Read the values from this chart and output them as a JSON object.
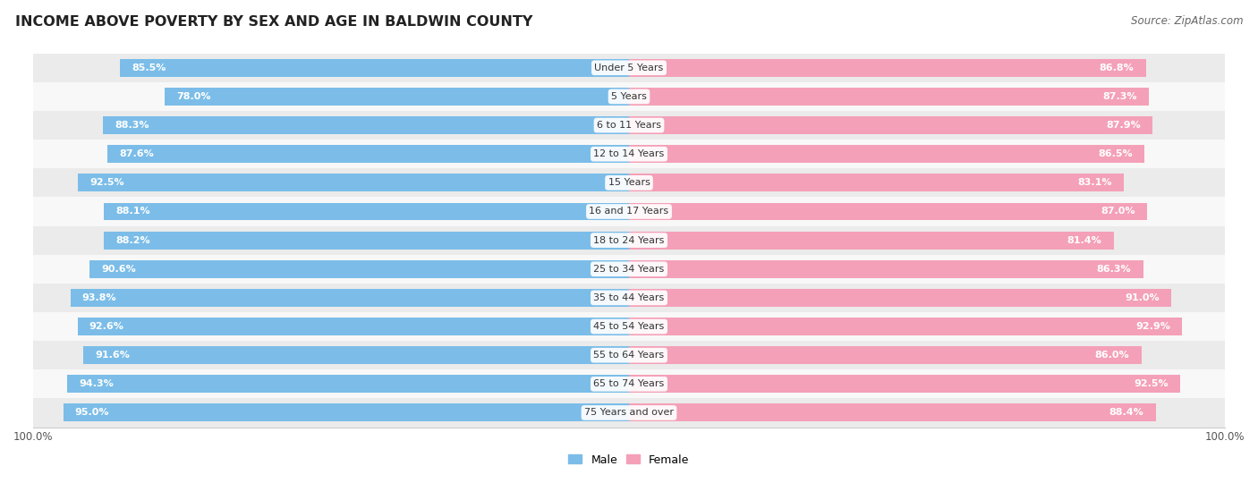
{
  "title": "INCOME ABOVE POVERTY BY SEX AND AGE IN BALDWIN COUNTY",
  "source": "Source: ZipAtlas.com",
  "categories": [
    "Under 5 Years",
    "5 Years",
    "6 to 11 Years",
    "12 to 14 Years",
    "15 Years",
    "16 and 17 Years",
    "18 to 24 Years",
    "25 to 34 Years",
    "35 to 44 Years",
    "45 to 54 Years",
    "55 to 64 Years",
    "65 to 74 Years",
    "75 Years and over"
  ],
  "male_values": [
    85.5,
    78.0,
    88.3,
    87.6,
    92.5,
    88.1,
    88.2,
    90.6,
    93.8,
    92.6,
    91.6,
    94.3,
    95.0
  ],
  "female_values": [
    86.8,
    87.3,
    87.9,
    86.5,
    83.1,
    87.0,
    81.4,
    86.3,
    91.0,
    92.9,
    86.0,
    92.5,
    88.4
  ],
  "male_color": "#7bbde8",
  "female_color": "#f4a0b8",
  "male_label": "Male",
  "female_label": "Female",
  "bar_height": 0.62,
  "row_bg_even": "#ebebeb",
  "row_bg_odd": "#f8f8f8",
  "title_fontsize": 11.5,
  "source_fontsize": 8.5,
  "label_fontsize": 8.0,
  "tick_fontsize": 8.5,
  "category_fontsize": 8.0
}
